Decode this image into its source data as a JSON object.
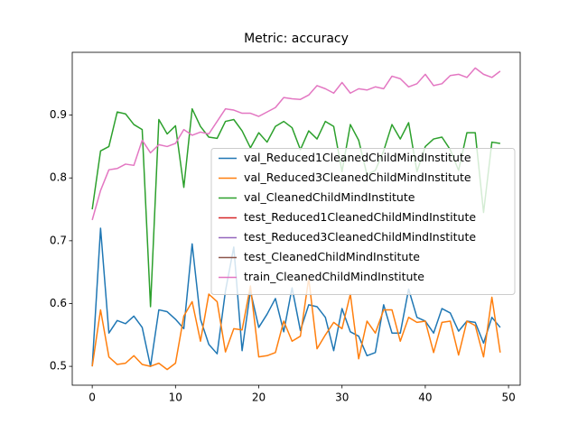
{
  "chart_data": {
    "type": "line",
    "title": "Metric: accuracy",
    "x": [
      0,
      1,
      2,
      3,
      4,
      5,
      6,
      7,
      8,
      9,
      10,
      11,
      12,
      13,
      14,
      15,
      16,
      17,
      18,
      19,
      20,
      21,
      22,
      23,
      24,
      25,
      26,
      27,
      28,
      29,
      30,
      31,
      32,
      33,
      34,
      35,
      36,
      37,
      38,
      39,
      40,
      41,
      42,
      43,
      44,
      45,
      46,
      47,
      48,
      49
    ],
    "xlim": [
      -2.4,
      51.4
    ],
    "xticks": [
      0,
      10,
      20,
      30,
      40,
      50
    ],
    "ylim": [
      0.47,
      1.0
    ],
    "yticks": [
      0.5,
      0.6,
      0.7,
      0.8,
      0.9
    ],
    "grid": false,
    "legend": "center right",
    "series": [
      {
        "name": "val_Reduced1CleanedChildMindInstitute",
        "color": "#1f77b4",
        "values": [
          0.5,
          0.72,
          0.553,
          0.573,
          0.568,
          0.58,
          0.562,
          0.5,
          0.59,
          0.587,
          0.575,
          0.56,
          0.695,
          0.575,
          0.535,
          0.52,
          0.62,
          0.69,
          0.525,
          0.62,
          0.562,
          0.583,
          0.608,
          0.555,
          0.625,
          0.557,
          0.598,
          0.595,
          0.578,
          0.525,
          0.592,
          0.555,
          0.548,
          0.517,
          0.522,
          0.598,
          0.553,
          0.553,
          0.623,
          0.578,
          0.572,
          0.553,
          0.592,
          0.585,
          0.556,
          0.572,
          0.57,
          0.537,
          0.578,
          0.562
        ]
      },
      {
        "name": "val_Reduced3CleanedChildMindInstitute",
        "color": "#ff7f0e",
        "values": [
          0.5,
          0.59,
          0.515,
          0.503,
          0.505,
          0.517,
          0.503,
          0.5,
          0.505,
          0.495,
          0.505,
          0.58,
          0.603,
          0.54,
          0.615,
          0.603,
          0.523,
          0.56,
          0.558,
          0.628,
          0.515,
          0.517,
          0.522,
          0.572,
          0.54,
          0.548,
          0.64,
          0.528,
          0.55,
          0.57,
          0.56,
          0.615,
          0.512,
          0.572,
          0.553,
          0.59,
          0.59,
          0.54,
          0.578,
          0.57,
          0.572,
          0.522,
          0.57,
          0.572,
          0.518,
          0.572,
          0.565,
          0.515,
          0.61,
          0.522
        ]
      },
      {
        "name": "val_CleanedChildMindInstitute",
        "color": "#2ca02c",
        "values": [
          0.75,
          0.843,
          0.85,
          0.905,
          0.902,
          0.885,
          0.877,
          0.595,
          0.893,
          0.87,
          0.883,
          0.785,
          0.91,
          0.882,
          0.865,
          0.863,
          0.89,
          0.893,
          0.875,
          0.848,
          0.872,
          0.857,
          0.882,
          0.89,
          0.88,
          0.845,
          0.875,
          0.862,
          0.89,
          0.882,
          0.81,
          0.885,
          0.86,
          0.805,
          0.812,
          0.843,
          0.885,
          0.862,
          0.888,
          0.81,
          0.85,
          0.862,
          0.865,
          0.845,
          0.812,
          0.872,
          0.872,
          0.745,
          0.857,
          0.855
        ]
      },
      {
        "name": "test_Reduced1CleanedChildMindInstitute",
        "color": "#d62728",
        "values": [
          null,
          null,
          null,
          null,
          null,
          null,
          null,
          null,
          null,
          null,
          null,
          null,
          null,
          null,
          null,
          null,
          null,
          null,
          null,
          null,
          null,
          null,
          null,
          null,
          null,
          null,
          null,
          null,
          null,
          null,
          null,
          null,
          null,
          null,
          null,
          null,
          null,
          null,
          null,
          null,
          null,
          null,
          null,
          null,
          null,
          null,
          null,
          null,
          null,
          null
        ]
      },
      {
        "name": "test_Reduced3CleanedChildMindInstitute",
        "color": "#9467bd",
        "values": [
          null,
          null,
          null,
          null,
          null,
          null,
          null,
          null,
          null,
          null,
          null,
          null,
          null,
          null,
          null,
          null,
          null,
          null,
          null,
          null,
          null,
          null,
          null,
          null,
          null,
          null,
          null,
          null,
          null,
          null,
          null,
          null,
          null,
          null,
          null,
          null,
          null,
          null,
          null,
          null,
          null,
          null,
          null,
          null,
          null,
          null,
          null,
          null,
          null,
          null
        ]
      },
      {
        "name": "test_CleanedChildMindInstitute",
        "color": "#8c564b",
        "values": [
          null,
          null,
          null,
          null,
          null,
          null,
          null,
          null,
          null,
          null,
          null,
          null,
          null,
          null,
          null,
          null,
          null,
          null,
          null,
          null,
          null,
          null,
          null,
          null,
          null,
          null,
          null,
          null,
          null,
          null,
          null,
          null,
          null,
          null,
          null,
          null,
          null,
          null,
          null,
          null,
          null,
          null,
          null,
          null,
          null,
          null,
          null,
          null,
          null,
          null
        ]
      },
      {
        "name": "train_CleanedChildMindInstitute",
        "color": "#e377c2",
        "values": [
          0.733,
          0.78,
          0.813,
          0.815,
          0.822,
          0.82,
          0.86,
          0.84,
          0.853,
          0.85,
          0.855,
          0.877,
          0.868,
          0.873,
          0.87,
          0.89,
          0.91,
          0.908,
          0.903,
          0.903,
          0.898,
          0.905,
          0.912,
          0.928,
          0.926,
          0.925,
          0.932,
          0.947,
          0.942,
          0.935,
          0.952,
          0.935,
          0.942,
          0.94,
          0.945,
          0.942,
          0.962,
          0.958,
          0.945,
          0.95,
          0.965,
          0.947,
          0.95,
          0.963,
          0.965,
          0.96,
          0.975,
          0.965,
          0.96,
          0.97
        ]
      }
    ]
  }
}
